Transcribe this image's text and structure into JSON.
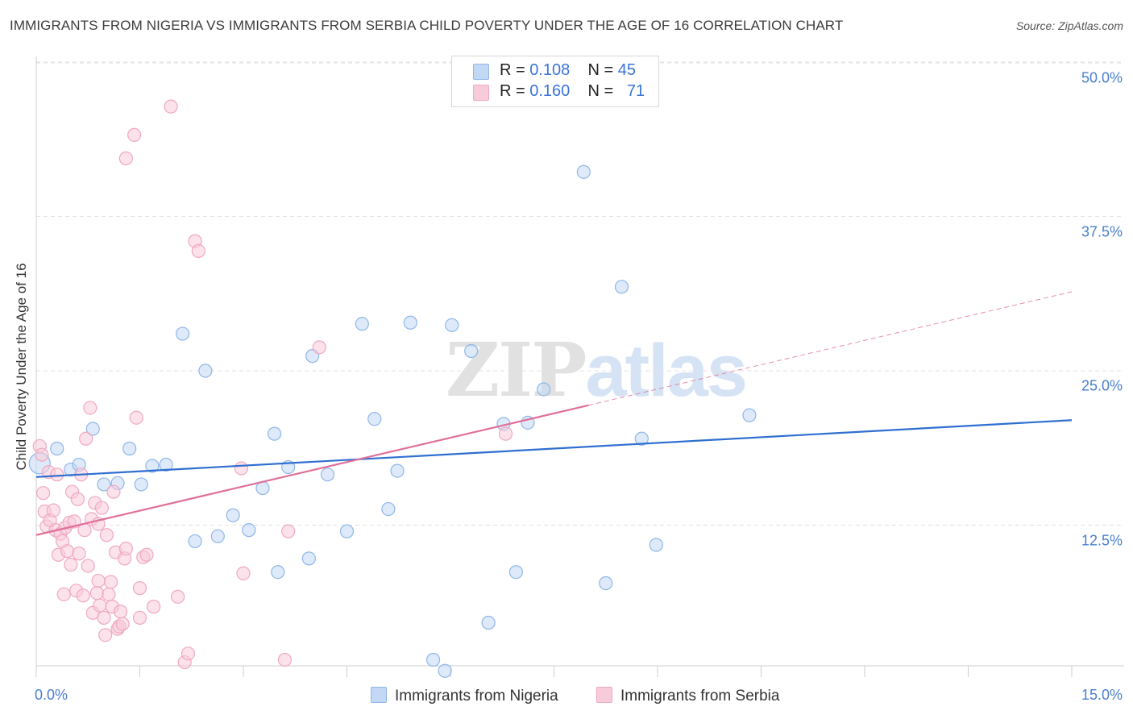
{
  "chart_data": {
    "type": "scatter",
    "title": "IMMIGRANTS FROM NIGERIA VS IMMIGRANTS FROM SERBIA CHILD POVERTY UNDER THE AGE OF 16 CORRELATION CHART",
    "source": "Source: ZipAtlas.com",
    "ylabel": "Child Poverty Under the Age of 16",
    "xlabel": "",
    "xlim": [
      0,
      15
    ],
    "ylim": [
      0,
      50
    ],
    "x_tick_labels": [
      "0.0%",
      "15.0%"
    ],
    "y_ticks": [
      {
        "value": 12.5,
        "label": "12.5%"
      },
      {
        "value": 25.0,
        "label": "25.0%"
      },
      {
        "value": 37.5,
        "label": "37.5%"
      },
      {
        "value": 50.0,
        "label": "50.0%"
      }
    ],
    "grid": true,
    "legend_position": "top-center",
    "watermark": {
      "zip": "ZIP",
      "atlas": "atlas"
    },
    "series": [
      {
        "name": "Immigrants from Nigeria",
        "color": "#8fb6ea",
        "fill": "#c3d8f4",
        "line_color": "#2f6fd0",
        "stats": {
          "r_label": "R = ",
          "r": "0.108",
          "n_label": "N = ",
          "n": "45"
        },
        "trend": {
          "x0": 0,
          "y0": 16.4,
          "x1": 15,
          "y1": 21.0,
          "dashed_from": null
        },
        "points": [
          [
            0.05,
            17.5,
            "large"
          ],
          [
            0.3,
            18.7,
            "normal"
          ],
          [
            0.5,
            17.0,
            "normal"
          ],
          [
            0.62,
            17.4,
            "normal"
          ],
          [
            0.82,
            20.3,
            "normal"
          ],
          [
            0.98,
            15.8,
            "normal"
          ],
          [
            1.18,
            15.9,
            "normal"
          ],
          [
            1.35,
            18.7,
            "normal"
          ],
          [
            1.52,
            15.8,
            "normal"
          ],
          [
            1.68,
            17.3,
            "normal"
          ],
          [
            1.88,
            17.4,
            "normal"
          ],
          [
            2.12,
            28.0,
            "normal"
          ],
          [
            2.3,
            11.2,
            "normal"
          ],
          [
            2.45,
            25.0,
            "normal"
          ],
          [
            2.63,
            11.6,
            "normal"
          ],
          [
            2.85,
            13.3,
            "normal"
          ],
          [
            3.08,
            12.1,
            "normal"
          ],
          [
            3.28,
            15.5,
            "normal"
          ],
          [
            3.45,
            19.9,
            "normal"
          ],
          [
            3.5,
            8.7,
            "normal"
          ],
          [
            3.65,
            17.2,
            "normal"
          ],
          [
            3.95,
            9.8,
            "normal"
          ],
          [
            4.0,
            26.2,
            "normal"
          ],
          [
            4.22,
            16.6,
            "normal"
          ],
          [
            4.5,
            12.0,
            "normal"
          ],
          [
            4.72,
            28.8,
            "normal"
          ],
          [
            4.9,
            21.1,
            "normal"
          ],
          [
            5.1,
            13.8,
            "normal"
          ],
          [
            5.23,
            16.9,
            "normal"
          ],
          [
            5.42,
            28.9,
            "normal"
          ],
          [
            5.75,
            1.6,
            "normal"
          ],
          [
            5.92,
            0.7,
            "normal"
          ],
          [
            6.02,
            28.7,
            "normal"
          ],
          [
            6.3,
            26.6,
            "normal"
          ],
          [
            6.55,
            4.6,
            "normal"
          ],
          [
            6.77,
            20.7,
            "normal"
          ],
          [
            6.95,
            8.7,
            "normal"
          ],
          [
            7.12,
            20.8,
            "normal"
          ],
          [
            7.35,
            23.5,
            "normal"
          ],
          [
            7.93,
            41.1,
            "normal"
          ],
          [
            8.25,
            7.8,
            "normal"
          ],
          [
            8.48,
            31.8,
            "normal"
          ],
          [
            8.77,
            19.5,
            "normal"
          ],
          [
            8.98,
            10.9,
            "normal"
          ],
          [
            10.33,
            21.4,
            "normal"
          ]
        ]
      },
      {
        "name": "Immigrants from Serbia",
        "color": "#f0a8c0",
        "fill": "#f8cbda",
        "line_color": "#e0709a",
        "stats": {
          "r_label": "R = ",
          "r": "0.160",
          "n_label": "N = ",
          "n": "71"
        },
        "trend": {
          "x0": 0,
          "y0": 11.7,
          "x1": 15,
          "y1": 31.4,
          "dashed_from": 8.0
        },
        "points": [
          [
            0.05,
            18.9
          ],
          [
            0.08,
            18.2
          ],
          [
            0.1,
            15.1
          ],
          [
            0.12,
            13.6
          ],
          [
            0.15,
            12.4
          ],
          [
            0.18,
            16.8
          ],
          [
            0.2,
            12.9
          ],
          [
            0.25,
            13.7
          ],
          [
            0.28,
            12.1
          ],
          [
            0.32,
            10.1
          ],
          [
            0.35,
            11.8
          ],
          [
            0.38,
            11.2
          ],
          [
            0.4,
            6.9
          ],
          [
            0.42,
            12.3
          ],
          [
            0.45,
            10.4
          ],
          [
            0.48,
            12.7
          ],
          [
            0.5,
            9.3
          ],
          [
            0.52,
            15.2
          ],
          [
            0.55,
            12.8
          ],
          [
            0.58,
            7.2
          ],
          [
            0.6,
            14.6
          ],
          [
            0.62,
            10.2
          ],
          [
            0.65,
            16.6
          ],
          [
            0.68,
            6.8
          ],
          [
            0.7,
            12.1
          ],
          [
            0.72,
            19.5
          ],
          [
            0.75,
            9.2
          ],
          [
            0.78,
            22.0
          ],
          [
            0.8,
            13.0
          ],
          [
            0.82,
            5.4
          ],
          [
            0.85,
            14.3
          ],
          [
            0.88,
            7.0
          ],
          [
            0.9,
            12.6
          ],
          [
            0.92,
            6.0
          ],
          [
            0.95,
            13.9
          ],
          [
            0.98,
            5.0
          ],
          [
            1.0,
            3.6
          ],
          [
            1.02,
            11.7
          ],
          [
            1.05,
            6.9
          ],
          [
            1.08,
            7.9
          ],
          [
            1.1,
            5.9
          ],
          [
            1.12,
            15.2
          ],
          [
            1.15,
            10.3
          ],
          [
            1.18,
            4.1
          ],
          [
            1.2,
            4.3
          ],
          [
            1.22,
            5.5
          ],
          [
            1.25,
            4.5
          ],
          [
            1.28,
            9.8
          ],
          [
            1.3,
            10.6
          ],
          [
            1.3,
            42.2
          ],
          [
            1.42,
            44.1
          ],
          [
            1.45,
            21.2
          ],
          [
            1.5,
            5.0
          ],
          [
            1.55,
            9.9
          ],
          [
            1.6,
            10.1
          ],
          [
            1.7,
            5.9
          ],
          [
            1.95,
            46.4
          ],
          [
            2.05,
            6.7
          ],
          [
            2.15,
            1.4
          ],
          [
            2.2,
            2.1
          ],
          [
            2.3,
            35.5
          ],
          [
            2.35,
            34.7
          ],
          [
            2.97,
            17.1
          ],
          [
            3.0,
            8.6
          ],
          [
            3.6,
            1.6
          ],
          [
            3.65,
            12.0
          ],
          [
            4.1,
            26.9
          ],
          [
            6.8,
            19.9
          ],
          [
            1.5,
            7.4
          ],
          [
            0.3,
            16.6
          ],
          [
            0.9,
            8.0
          ]
        ]
      }
    ]
  }
}
